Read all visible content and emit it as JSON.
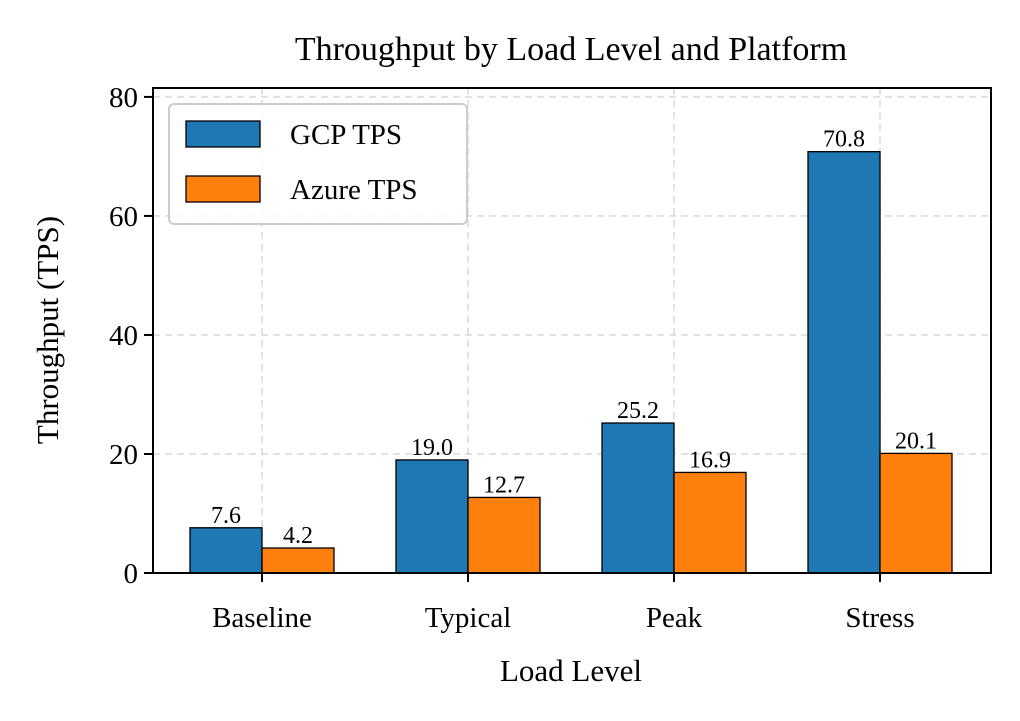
{
  "chart_data": {
    "type": "bar",
    "title": "Throughput by Load Level and Platform",
    "xlabel": "Load Level",
    "ylabel": "Throughput (TPS)",
    "categories": [
      "Baseline",
      "Typical",
      "Peak",
      "Stress"
    ],
    "series": [
      {
        "name": "GCP TPS",
        "color": "#1f77b4",
        "values": [
          7.6,
          19.0,
          25.2,
          70.8
        ],
        "labels": [
          "7.6",
          "19.0",
          "25.2",
          "70.8"
        ]
      },
      {
        "name": "Azure TPS",
        "color": "#ff7f0e",
        "values": [
          4.2,
          12.7,
          16.9,
          20.1
        ],
        "labels": [
          "4.2",
          "12.7",
          "16.9",
          "20.1"
        ]
      }
    ],
    "ylim": [
      0,
      81.5
    ],
    "yticks": [
      0,
      20,
      40,
      60,
      80
    ],
    "ytick_labels": [
      "0",
      "20",
      "40",
      "60",
      "80"
    ],
    "grid": true,
    "legend": "top-left"
  }
}
